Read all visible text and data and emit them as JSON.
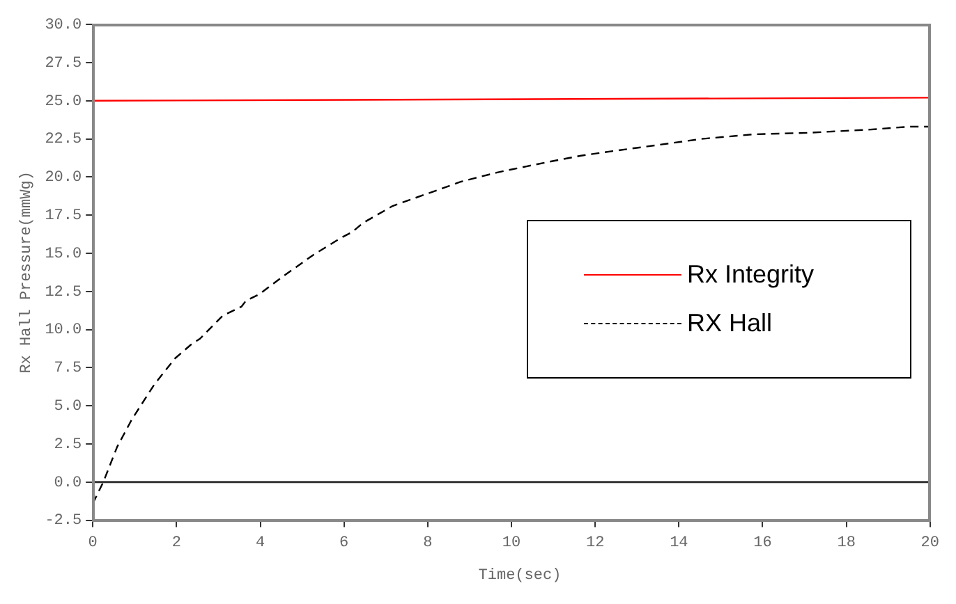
{
  "chart_data": {
    "type": "line",
    "xlabel": "Time(sec)",
    "ylabel": "Rx Hall Pressure(mmWg)",
    "xlim": [
      0,
      20
    ],
    "xticks": [
      0,
      2,
      4,
      6,
      8,
      10,
      12,
      14,
      16,
      18,
      20
    ],
    "ylim": [
      -2.5,
      30
    ],
    "yticks": [
      {
        "value": -2.5,
        "label": "-2.5"
      },
      {
        "value": 0,
        "label": "0.0"
      },
      {
        "value": 2.5,
        "label": "2.5"
      },
      {
        "value": 5,
        "label": "5.0"
      },
      {
        "value": 7.5,
        "label": "7.5"
      },
      {
        "value": 10,
        "label": "10.0"
      },
      {
        "value": 12.5,
        "label": "12.5"
      },
      {
        "value": 15,
        "label": "15.0"
      },
      {
        "value": 17.5,
        "label": "17.5"
      },
      {
        "value": 20,
        "label": "20.0"
      },
      {
        "value": 22.5,
        "label": "22.5"
      },
      {
        "value": 25,
        "label": "25.0"
      },
      {
        "value": 27.5,
        "label": "27.5"
      },
      {
        "value": 30,
        "label": "30.0"
      }
    ],
    "grid": false,
    "legend": "right",
    "marker": "none",
    "ref_lines": [
      {
        "axis": "y",
        "value": 0,
        "color": "#333333"
      }
    ],
    "series": [
      {
        "name": "Rx Integrity",
        "color": "#ff0000",
        "line_style": "solid",
        "x": [
          0,
          20
        ],
        "values": [
          25.0,
          25.2
        ]
      },
      {
        "name": "RX Hall",
        "color": "#000000",
        "line_style": "dashed",
        "x": [
          0,
          0.25,
          0.58,
          0.93,
          1.47,
          1.96,
          2.34,
          2.56,
          3.1,
          3.55,
          3.66,
          3.97,
          4.5,
          5.27,
          5.92,
          6.2,
          6.46,
          7.16,
          7.98,
          8.8,
          9.66,
          10.36,
          10.9,
          11.66,
          12.42,
          13.5,
          14.54,
          15.78,
          17.07,
          18.5,
          19.5,
          20
        ],
        "values": [
          -1.4,
          0,
          2.3,
          4.1,
          6.4,
          8.1,
          9.0,
          9.4,
          10.9,
          11.5,
          11.9,
          12.3,
          13.4,
          14.9,
          16.0,
          16.4,
          17.0,
          18.1,
          18.9,
          19.7,
          20.3,
          20.7,
          21.0,
          21.4,
          21.7,
          22.1,
          22.5,
          22.8,
          22.9,
          23.1,
          23.3,
          23.3
        ]
      }
    ]
  }
}
